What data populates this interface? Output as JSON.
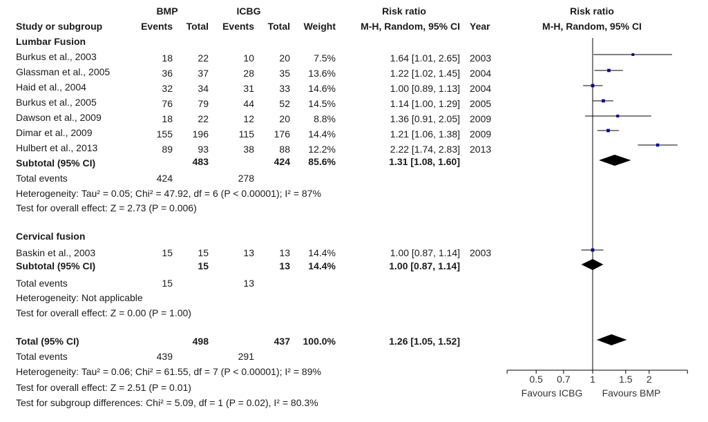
{
  "header": {
    "group1": "BMP",
    "group2": "ICBG",
    "effect_title": "Risk ratio",
    "plot_title": "Risk ratio",
    "columns": {
      "study": "Study or subgroup",
      "events1": "Events",
      "total1": "Total",
      "events2": "Events",
      "total2": "Total",
      "weight": "Weight",
      "method": "M-H, Random, 95% CI",
      "year": "Year",
      "plot_method": "M-H, Random, 95% CI"
    }
  },
  "subgroups": [
    {
      "name": "Lumbar Fusion",
      "studies": [
        {
          "study": "Burkus et al., 2003",
          "e1": "18",
          "t1": "22",
          "e2": "10",
          "t2": "20",
          "weight": "7.5%",
          "ci": "1.64 [1.01, 2.65]",
          "year": "2003"
        },
        {
          "study": "Glassman et al., 2005",
          "e1": "36",
          "t1": "37",
          "e2": "28",
          "t2": "35",
          "weight": "13.6%",
          "ci": "1.22 [1.02, 1.45]",
          "year": "2004"
        },
        {
          "study": "Haid et al., 2004",
          "e1": "32",
          "t1": "34",
          "e2": "31",
          "t2": "33",
          "weight": "14.6%",
          "ci": "1.00 [0.89, 1.13]",
          "year": "2004"
        },
        {
          "study": "Burkus et al., 2005",
          "e1": "76",
          "t1": "79",
          "e2": "44",
          "t2": "52",
          "weight": "14.5%",
          "ci": "1.14 [1.00, 1.29]",
          "year": "2005"
        },
        {
          "study": "Dawson et al., 2009",
          "e1": "18",
          "t1": "22",
          "e2": "12",
          "t2": "20",
          "weight": "8.8%",
          "ci": "1.36 [0.91, 2.05]",
          "year": "2009"
        },
        {
          "study": "Dimar et al., 2009",
          "e1": "155",
          "t1": "196",
          "e2": "115",
          "t2": "176",
          "weight": "14.4%",
          "ci": "1.21 [1.06, 1.38]",
          "year": "2009"
        },
        {
          "study": "Hulbert et al., 2013",
          "e1": "89",
          "t1": "93",
          "e2": "38",
          "t2": "88",
          "weight": "12.2%",
          "ci": "2.22 [1.74, 2.83]",
          "year": "2013"
        }
      ],
      "subtotal": {
        "label": "Subtotal (95% CI)",
        "t1": "483",
        "t2": "424",
        "weight": "85.6%",
        "ci": "1.31 [1.08, 1.60]"
      },
      "total_events": {
        "label": "Total events",
        "e1": "424",
        "e2": "278"
      },
      "heterogeneity": "Heterogeneity: Tau² = 0.05; Chi² = 47.92, df = 6 (P < 0.00001); I² = 87%",
      "overall_effect": "Test for overall effect: Z = 2.73 (P = 0.006)"
    },
    {
      "name": "Cervical fusion",
      "studies": [
        {
          "study": "Baskin et al., 2003",
          "e1": "15",
          "t1": "15",
          "e2": "13",
          "t2": "13",
          "weight": "14.4%",
          "ci": "1.00 [0.87, 1.14]",
          "year": "2003"
        }
      ],
      "subtotal": {
        "label": "Subtotal (95% CI)",
        "t1": "15",
        "t2": "13",
        "weight": "14.4%",
        "ci": "1.00 [0.87, 1.14]"
      },
      "total_events": {
        "label": "Total events",
        "e1": "15",
        "e2": "13"
      },
      "heterogeneity": "Heterogeneity: Not applicable",
      "overall_effect": "Test for overall effect: Z = 0.00 (P = 1.00)"
    }
  ],
  "total": {
    "label": "Total (95% CI)",
    "t1": "498",
    "t2": "437",
    "weight": "100.0%",
    "ci": "1.26 [1.05, 1.52]",
    "total_events": {
      "label": "Total events",
      "e1": "439",
      "e2": "291"
    },
    "heterogeneity": "Heterogeneity: Tau² = 0.06; Chi² = 61.55, df = 7 (P < 0.00001); I² = 89%",
    "overall_effect": "Test for overall effect: Z = 2.51 (P = 0.01)",
    "subgroup_differences": "Test for subgroup differences: Chi² = 5.09, df = 1 (P = 0.02), I² = 80.3%"
  },
  "chart_data": {
    "type": "forest",
    "scale": "log",
    "xlim": [
      0.35,
      3.2
    ],
    "ticks": [
      {
        "value": 0.5,
        "label": "0.5"
      },
      {
        "value": 0.7,
        "label": "0.7"
      },
      {
        "value": 1,
        "label": "1"
      },
      {
        "value": 1.5,
        "label": "1.5"
      },
      {
        "value": 2,
        "label": "2"
      }
    ],
    "null_value": 1,
    "favours_left": "Favours ICBG",
    "favours_right": "Favours BMP",
    "marker_color": "#000099",
    "studies": [
      {
        "name": "Burkus et al., 2003",
        "rr": 1.64,
        "lo": 1.01,
        "hi": 2.65,
        "weight": 7.5
      },
      {
        "name": "Glassman et al., 2005",
        "rr": 1.22,
        "lo": 1.02,
        "hi": 1.45,
        "weight": 13.6
      },
      {
        "name": "Haid et al., 2004",
        "rr": 1.0,
        "lo": 0.89,
        "hi": 1.13,
        "weight": 14.6
      },
      {
        "name": "Burkus et al., 2005",
        "rr": 1.14,
        "lo": 1.0,
        "hi": 1.29,
        "weight": 14.5
      },
      {
        "name": "Dawson et al., 2009",
        "rr": 1.36,
        "lo": 0.91,
        "hi": 2.05,
        "weight": 8.8
      },
      {
        "name": "Dimar et al., 2009",
        "rr": 1.21,
        "lo": 1.06,
        "hi": 1.38,
        "weight": 14.4
      },
      {
        "name": "Hulbert et al., 2013",
        "rr": 2.22,
        "lo": 1.74,
        "hi": 2.83,
        "weight": 12.2
      },
      {
        "name": "Baskin et al., 2003",
        "rr": 1.0,
        "lo": 0.87,
        "hi": 1.14,
        "weight": 14.4
      }
    ],
    "diamonds": [
      {
        "name": "Subtotal Lumbar Fusion",
        "rr": 1.31,
        "lo": 1.08,
        "hi": 1.6
      },
      {
        "name": "Subtotal Cervical fusion",
        "rr": 1.0,
        "lo": 0.87,
        "hi": 1.14
      },
      {
        "name": "Total",
        "rr": 1.26,
        "lo": 1.05,
        "hi": 1.52
      }
    ]
  }
}
